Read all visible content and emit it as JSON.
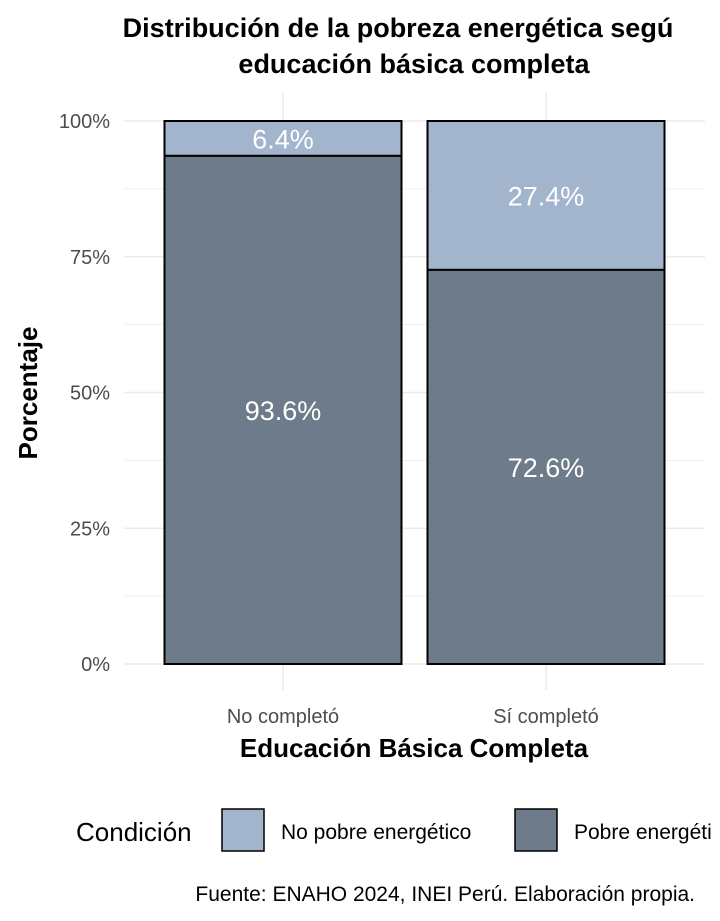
{
  "chart_data": {
    "type": "bar",
    "stacked": true,
    "title_lines": [
      "Distribución de la pobreza energética segú",
      "educación básica completa"
    ],
    "xlabel": "Educación Básica Completa",
    "ylabel": "Porcentaje",
    "categories": [
      "No completó",
      "Sí completó"
    ],
    "ylim": [
      0,
      100
    ],
    "yticks": [
      "0%",
      "25%",
      "50%",
      "75%",
      "100%"
    ],
    "series": [
      {
        "name": "Pobre energético",
        "values": [
          93.6,
          72.6
        ],
        "labels": [
          "93.6%",
          "72.6%"
        ],
        "color": "#6e7b8b"
      },
      {
        "name": "No pobre energético",
        "values": [
          6.4,
          27.4
        ],
        "labels": [
          "6.4%",
          "27.4%"
        ],
        "color": "#a2b5cd"
      }
    ],
    "legend": {
      "title": "Condición",
      "position": "bottom",
      "entries": [
        {
          "label": "No pobre energético",
          "color": "#a2b5cd"
        },
        {
          "label": "Pobre energéti",
          "color": "#6e7b8b"
        }
      ]
    },
    "grid": true,
    "caption": "Fuente: ENAHO 2024, INEI Perú. Elaboración propia."
  }
}
